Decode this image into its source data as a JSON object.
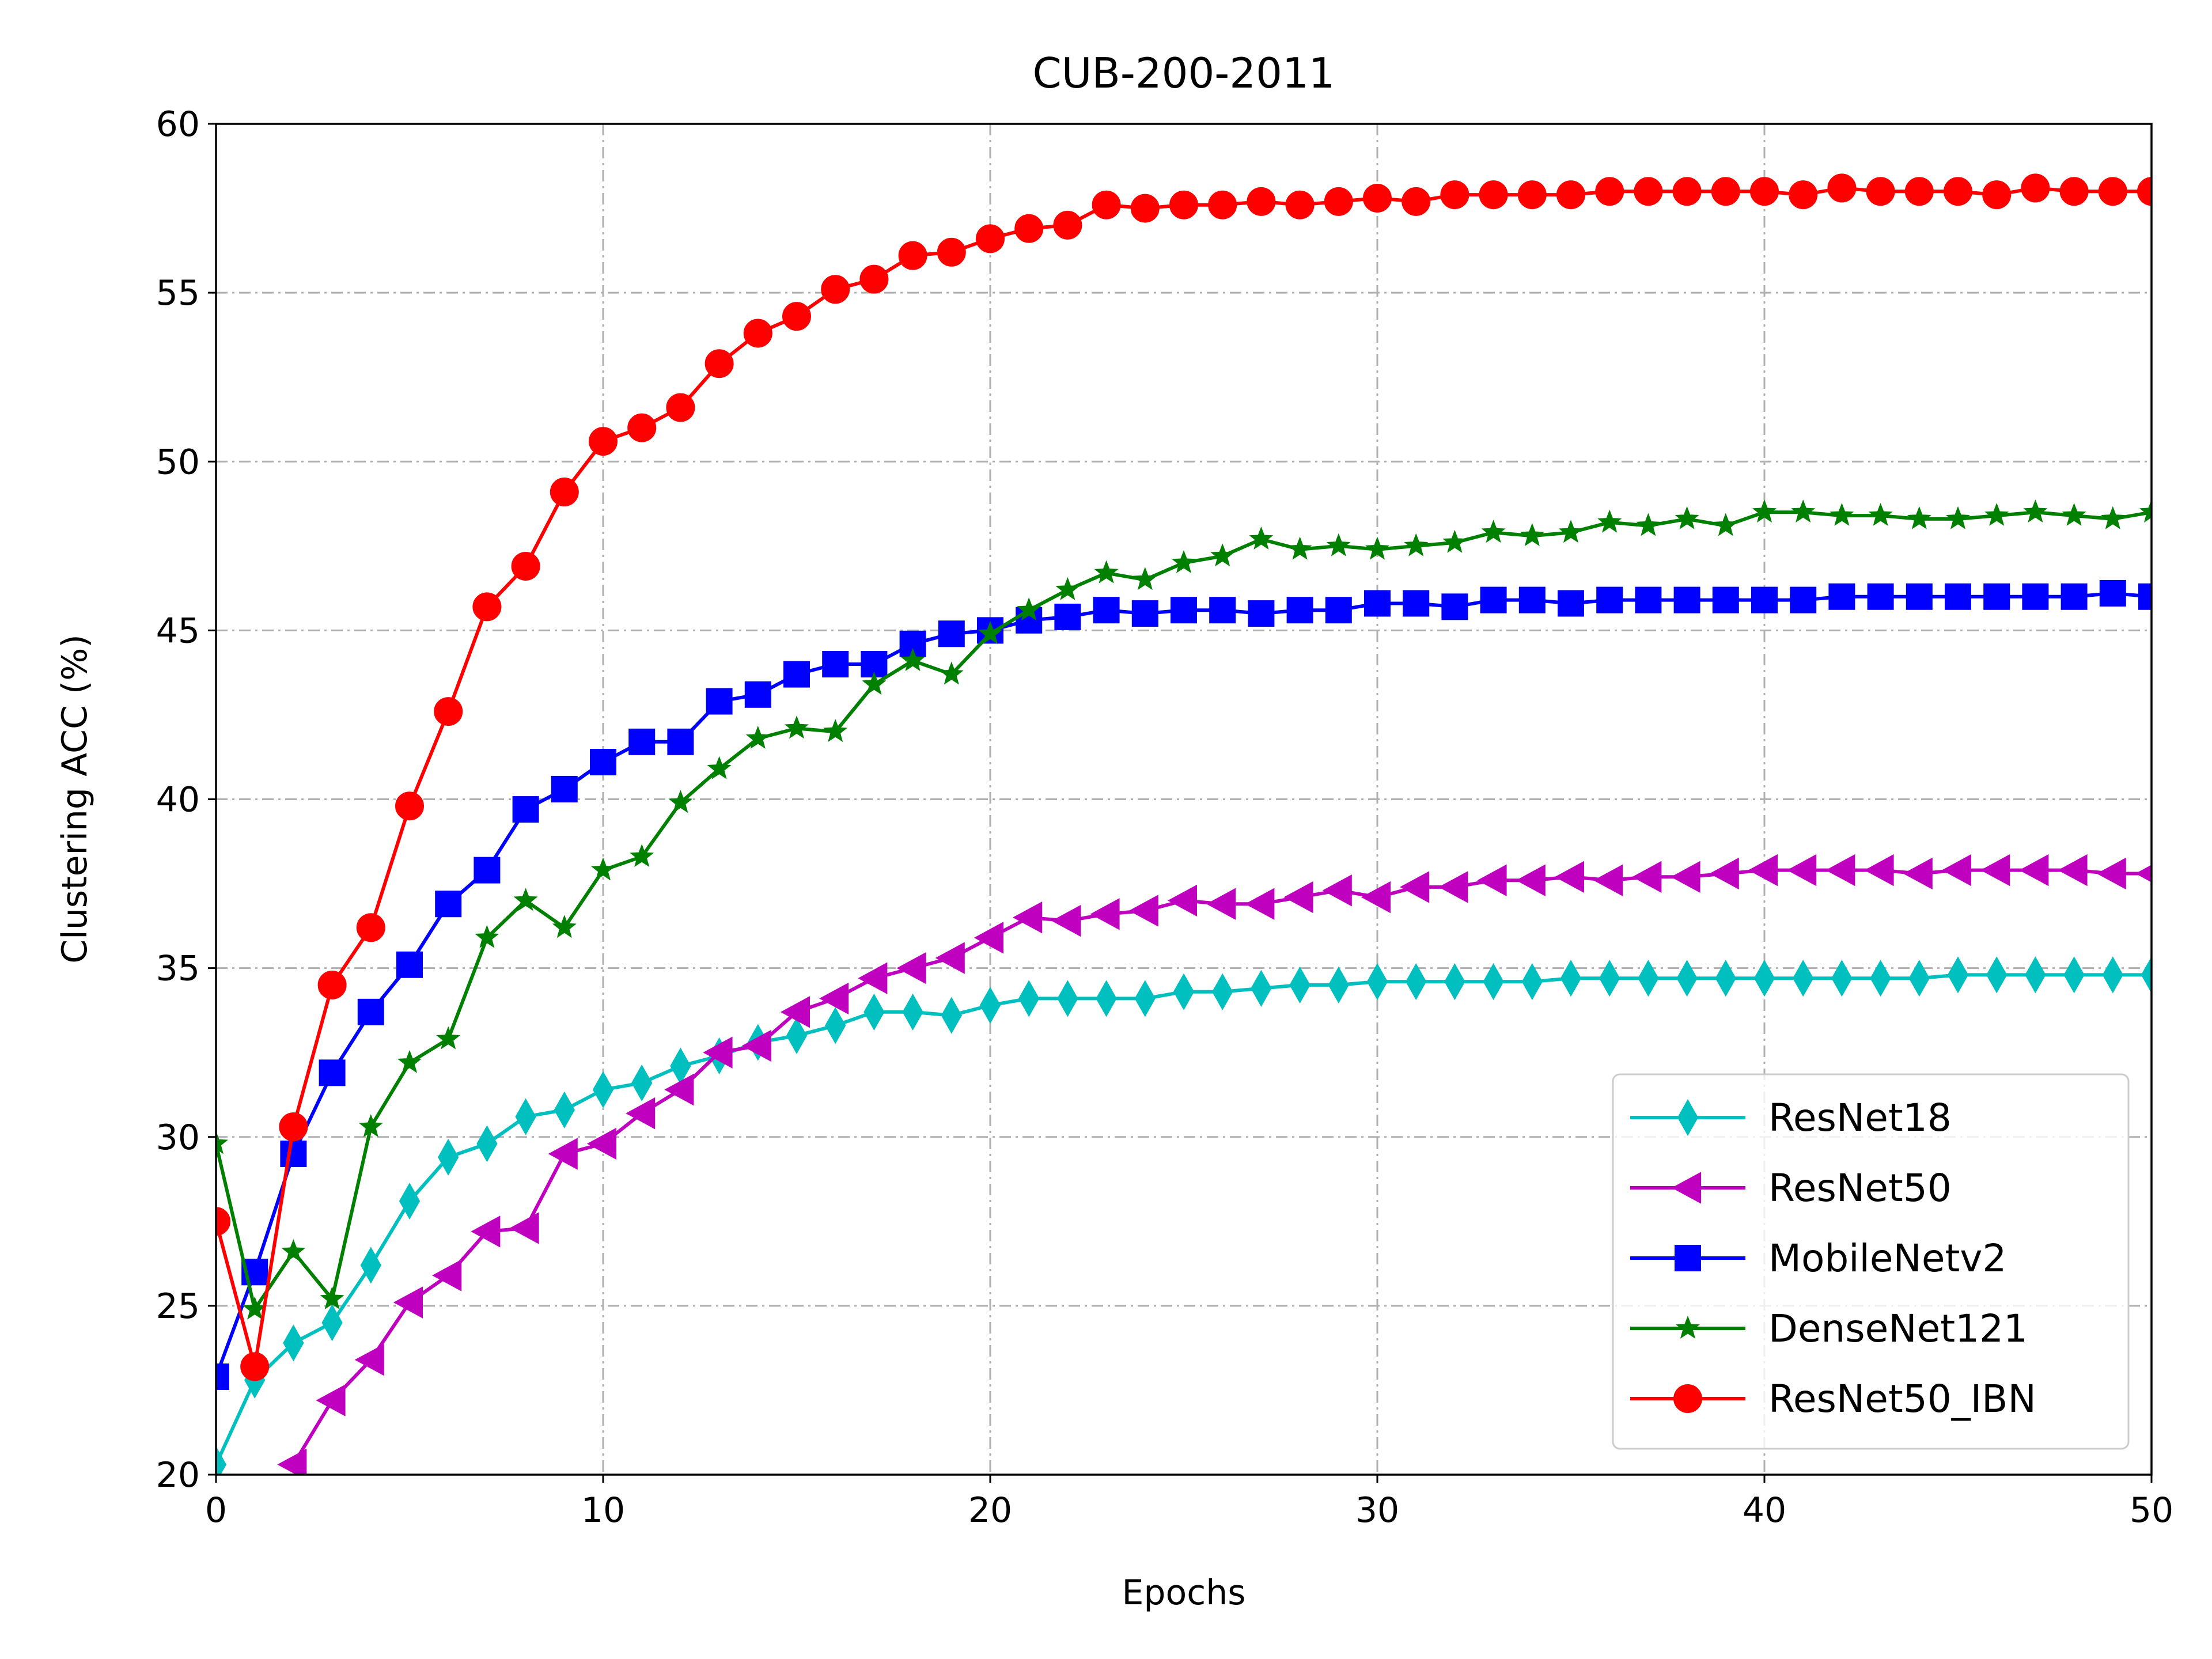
{
  "chart_data": {
    "type": "line",
    "title": "CUB-200-2011",
    "xlabel": "Epochs",
    "ylabel": "Clustering ACC (%)",
    "xlim": [
      0,
      50
    ],
    "ylim": [
      20,
      60
    ],
    "xticks": [
      0,
      10,
      20,
      30,
      40,
      50
    ],
    "yticks": [
      20,
      25,
      30,
      35,
      40,
      45,
      50,
      55,
      60
    ],
    "grid": true,
    "legend_position": "lower-right",
    "series": [
      {
        "name": "ResNet18",
        "color": "#00bfbf",
        "marker": "thin-diamond",
        "x": [
          0,
          1,
          2,
          3,
          4,
          5,
          6,
          7,
          8,
          9,
          10,
          11,
          12,
          13,
          14,
          15,
          16,
          17,
          18,
          19,
          20,
          21,
          22,
          23,
          24,
          25,
          26,
          27,
          28,
          29,
          30,
          31,
          32,
          33,
          34,
          35,
          36,
          37,
          38,
          39,
          40,
          41,
          42,
          43,
          44,
          45,
          46,
          47,
          48,
          49,
          50
        ],
        "values": [
          20.3,
          22.8,
          23.9,
          24.5,
          26.2,
          28.1,
          29.4,
          29.8,
          30.6,
          30.8,
          31.4,
          31.6,
          32.1,
          32.4,
          32.8,
          33.0,
          33.3,
          33.7,
          33.7,
          33.6,
          33.9,
          34.1,
          34.1,
          34.1,
          34.1,
          34.3,
          34.3,
          34.4,
          34.5,
          34.5,
          34.6,
          34.6,
          34.6,
          34.6,
          34.6,
          34.7,
          34.7,
          34.7,
          34.7,
          34.7,
          34.7,
          34.7,
          34.7,
          34.7,
          34.7,
          34.8,
          34.8,
          34.8,
          34.8,
          34.8,
          34.8
        ]
      },
      {
        "name": "ResNet50",
        "color": "#bf00bf",
        "marker": "triangle-left",
        "x": [
          2,
          3,
          4,
          5,
          6,
          7,
          8,
          9,
          10,
          11,
          12,
          13,
          14,
          15,
          16,
          17,
          18,
          19,
          20,
          21,
          22,
          23,
          24,
          25,
          26,
          27,
          28,
          29,
          30,
          31,
          32,
          33,
          34,
          35,
          36,
          37,
          38,
          39,
          40,
          41,
          42,
          43,
          44,
          45,
          46,
          47,
          48,
          49,
          50
        ],
        "values": [
          20.3,
          22.2,
          23.4,
          25.1,
          25.9,
          27.2,
          27.3,
          29.5,
          29.8,
          30.7,
          31.4,
          32.5,
          32.7,
          33.7,
          34.1,
          34.7,
          35.0,
          35.3,
          35.9,
          36.5,
          36.4,
          36.6,
          36.7,
          37.0,
          36.9,
          36.9,
          37.1,
          37.3,
          37.1,
          37.4,
          37.4,
          37.6,
          37.6,
          37.7,
          37.6,
          37.7,
          37.7,
          37.8,
          37.9,
          37.9,
          37.9,
          37.9,
          37.8,
          37.9,
          37.9,
          37.9,
          37.9,
          37.8,
          37.8
        ]
      },
      {
        "name": "MobileNetv2",
        "color": "#0000ff",
        "marker": "square",
        "x": [
          0,
          1,
          2,
          3,
          4,
          5,
          6,
          7,
          8,
          9,
          10,
          11,
          12,
          13,
          14,
          15,
          16,
          17,
          18,
          19,
          20,
          21,
          22,
          23,
          24,
          25,
          26,
          27,
          28,
          29,
          30,
          31,
          32,
          33,
          34,
          35,
          36,
          37,
          38,
          39,
          40,
          41,
          42,
          43,
          44,
          45,
          46,
          47,
          48,
          49,
          50
        ],
        "values": [
          22.9,
          26.0,
          29.5,
          31.9,
          33.7,
          35.1,
          36.9,
          37.9,
          39.7,
          40.3,
          41.1,
          41.7,
          41.7,
          42.9,
          43.1,
          43.7,
          44.0,
          44.0,
          44.6,
          44.9,
          45.0,
          45.3,
          45.4,
          45.6,
          45.5,
          45.6,
          45.6,
          45.5,
          45.6,
          45.6,
          45.8,
          45.8,
          45.7,
          45.9,
          45.9,
          45.8,
          45.9,
          45.9,
          45.9,
          45.9,
          45.9,
          45.9,
          46.0,
          46.0,
          46.0,
          46.0,
          46.0,
          46.0,
          46.0,
          46.1,
          46.0
        ]
      },
      {
        "name": "DenseNet121",
        "color": "#008000",
        "marker": "star",
        "x": [
          0,
          1,
          2,
          3,
          4,
          5,
          6,
          7,
          8,
          9,
          10,
          11,
          12,
          13,
          14,
          15,
          16,
          17,
          18,
          19,
          20,
          21,
          22,
          23,
          24,
          25,
          26,
          27,
          28,
          29,
          30,
          31,
          32,
          33,
          34,
          35,
          36,
          37,
          38,
          39,
          40,
          41,
          42,
          43,
          44,
          45,
          46,
          47,
          48,
          49,
          50
        ],
        "values": [
          29.8,
          24.9,
          26.6,
          25.2,
          30.3,
          32.2,
          32.9,
          35.9,
          37.0,
          36.2,
          37.9,
          38.3,
          39.9,
          40.9,
          41.8,
          42.1,
          42.0,
          43.4,
          44.1,
          43.7,
          44.9,
          45.6,
          46.2,
          46.7,
          46.5,
          47.0,
          47.2,
          47.7,
          47.4,
          47.5,
          47.4,
          47.5,
          47.6,
          47.9,
          47.8,
          47.9,
          48.2,
          48.1,
          48.3,
          48.1,
          48.5,
          48.5,
          48.4,
          48.4,
          48.3,
          48.3,
          48.4,
          48.5,
          48.4,
          48.3,
          48.5
        ]
      },
      {
        "name": "ResNet50_IBN",
        "color": "#ff0000",
        "marker": "circle",
        "x": [
          0,
          1,
          2,
          3,
          4,
          5,
          6,
          7,
          8,
          9,
          10,
          11,
          12,
          13,
          14,
          15,
          16,
          17,
          18,
          19,
          20,
          21,
          22,
          23,
          24,
          25,
          26,
          27,
          28,
          29,
          30,
          31,
          32,
          33,
          34,
          35,
          36,
          37,
          38,
          39,
          40,
          41,
          42,
          43,
          44,
          45,
          46,
          47,
          48,
          49,
          50
        ],
        "values": [
          27.5,
          23.2,
          30.3,
          34.5,
          36.2,
          39.8,
          42.6,
          45.7,
          46.9,
          49.1,
          50.6,
          51.0,
          51.6,
          52.9,
          53.8,
          54.3,
          55.1,
          55.4,
          56.1,
          56.2,
          56.6,
          56.9,
          57.0,
          57.6,
          57.5,
          57.6,
          57.6,
          57.7,
          57.6,
          57.7,
          57.8,
          57.7,
          57.9,
          57.9,
          57.9,
          57.9,
          58.0,
          58.0,
          58.0,
          58.0,
          58.0,
          57.9,
          58.1,
          58.0,
          58.0,
          58.0,
          57.9,
          58.1,
          58.0,
          58.0,
          58.0
        ]
      }
    ]
  }
}
